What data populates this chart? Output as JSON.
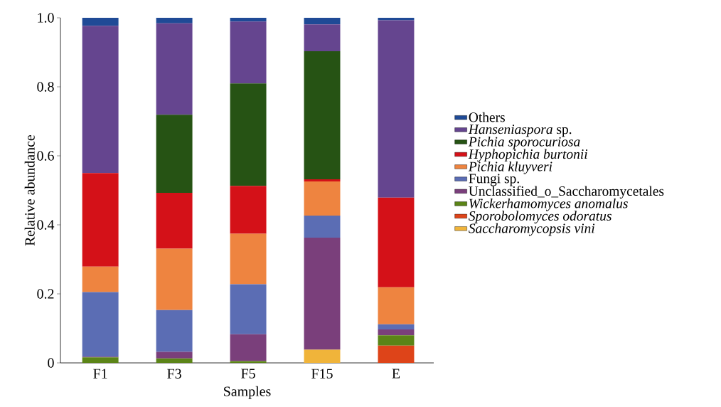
{
  "chart_data": {
    "type": "bar",
    "stacked": true,
    "xlabel": "Samples",
    "ylabel": "Relative abundance",
    "categories": [
      "F1",
      "F3",
      "F5",
      "F15",
      "E"
    ],
    "ylim": [
      0,
      1
    ],
    "yticks": [
      0,
      0.2,
      0.4,
      0.6,
      0.8,
      {
        "value": 1,
        "label": "1.0"
      }
    ],
    "grid": false,
    "legend": "right",
    "series": [
      {
        "name": "*Saccharomycopsis vini*",
        "color": "#f0b43a",
        "values": [
          0,
          0,
          0,
          0.038,
          0
        ]
      },
      {
        "name": "*Sporobolomyces odoratus*",
        "color": "#de4419",
        "values": [
          0,
          0,
          0,
          0,
          0.05
        ]
      },
      {
        "name": "*Wickerhamomyces anomalus*",
        "color": "#5b8417",
        "values": [
          0.016,
          0.013,
          0.005,
          0,
          0.03
        ]
      },
      {
        "name": "Unclassified_o_Saccharomycetales",
        "color": "#7a3f7b",
        "values": [
          0.002,
          0.019,
          0.078,
          0.325,
          0.017
        ]
      },
      {
        "name": "Fungi sp.",
        "color": "#5b6db4",
        "values": [
          0.187,
          0.121,
          0.145,
          0.064,
          0.015
        ]
      },
      {
        "name": "*Pichia kluyveri*",
        "color": "#ee8440",
        "values": [
          0.074,
          0.178,
          0.146,
          0.099,
          0.107
        ]
      },
      {
        "name": "*Hyphopichia burtonii*",
        "color": "#d41118",
        "values": [
          0.271,
          0.162,
          0.139,
          0.006,
          0.26
        ]
      },
      {
        "name": "*Pichia sporocuriosa*",
        "color": "#265314",
        "values": [
          0,
          0.226,
          0.297,
          0.371,
          0
        ]
      },
      {
        "name": "*Hanseniaspora* sp.",
        "color": "#65458f",
        "values": [
          0.427,
          0.265,
          0.179,
          0.078,
          0.514
        ]
      },
      {
        "name": "Others",
        "color": "#1f4a96",
        "values": [
          0.023,
          0.016,
          0.011,
          0.019,
          0.007
        ]
      }
    ]
  }
}
